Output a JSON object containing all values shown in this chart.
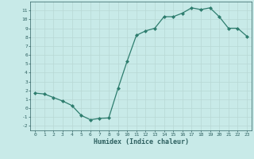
{
  "x": [
    0,
    1,
    2,
    3,
    4,
    5,
    6,
    7,
    8,
    9,
    10,
    11,
    12,
    13,
    14,
    15,
    16,
    17,
    18,
    19,
    20,
    21,
    22,
    23
  ],
  "y": [
    1.7,
    1.6,
    1.2,
    0.8,
    0.3,
    -0.8,
    -1.3,
    -1.15,
    -1.1,
    2.2,
    5.3,
    8.2,
    8.7,
    9.0,
    10.3,
    10.3,
    10.7,
    11.3,
    11.1,
    11.3,
    10.3,
    9.0,
    9.0,
    8.1
  ],
  "xlabel": "Humidex (Indice chaleur)",
  "line_color": "#2e7d6e",
  "bg_color": "#c8eae8",
  "grid_color": "#b8d8d5",
  "text_color": "#2e6060",
  "ylim": [
    -2.5,
    12
  ],
  "xlim": [
    -0.5,
    23.5
  ],
  "yticks": [
    -2,
    -1,
    0,
    1,
    2,
    3,
    4,
    5,
    6,
    7,
    8,
    9,
    10,
    11
  ],
  "xticks": [
    0,
    1,
    2,
    3,
    4,
    5,
    6,
    7,
    8,
    9,
    10,
    11,
    12,
    13,
    14,
    15,
    16,
    17,
    18,
    19,
    20,
    21,
    22,
    23
  ]
}
